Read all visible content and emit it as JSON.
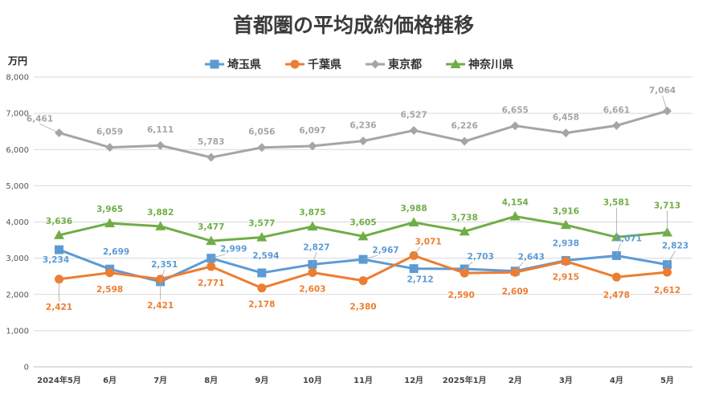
{
  "chart_data": {
    "type": "line",
    "title": "首都圏の平均成約価格推移",
    "ylabel": "万円",
    "ylim": [
      0,
      8000
    ],
    "yticks": [
      "0",
      "1,000",
      "2,000",
      "3,000",
      "4,000",
      "5,000",
      "6,000",
      "7,000",
      "8,000"
    ],
    "categories": [
      "2024年5月",
      "6月",
      "7月",
      "8月",
      "9月",
      "10月",
      "11月",
      "12月",
      "2025年1月",
      "2月",
      "3月",
      "4月",
      "5月"
    ],
    "legend_position": "top-center",
    "grid": true,
    "series": [
      {
        "name": "埼玉県",
        "color": "#5b9bd5",
        "marker": "square",
        "values": [
          3234,
          2699,
          2351,
          2999,
          2594,
          2827,
          2967,
          2712,
          2703,
          2643,
          2938,
          3071,
          2823
        ],
        "labels": [
          "3,234",
          "2,699",
          "2,351",
          "2,999",
          "2,594",
          "2,827",
          "2,967",
          "2,712",
          "2,703",
          "2,643",
          "2,938",
          "3,071",
          "2,823"
        ]
      },
      {
        "name": "千葉県",
        "color": "#ed7d31",
        "marker": "circle",
        "values": [
          2421,
          2598,
          2421,
          2771,
          2178,
          2603,
          2380,
          3071,
          2590,
          2609,
          2915,
          2478,
          2612
        ],
        "labels": [
          "2,421",
          "2,598",
          "2,421",
          "2,771",
          "2,178",
          "2,603",
          "2,380",
          "3,071",
          "2,590",
          "2,609",
          "2,915",
          "2,478",
          "2,612"
        ]
      },
      {
        "name": "東京都",
        "color": "#a5a5a5",
        "marker": "diamond",
        "values": [
          6461,
          6059,
          6111,
          5783,
          6056,
          6097,
          6236,
          6527,
          6226,
          6655,
          6458,
          6661,
          7064
        ],
        "labels": [
          "6,461",
          "6,059",
          "6,111",
          "5,783",
          "6,056",
          "6,097",
          "6,236",
          "6,527",
          "6,226",
          "6,655",
          "6,458",
          "6,661",
          "7,064"
        ]
      },
      {
        "name": "神奈川県",
        "color": "#70ad47",
        "marker": "triangle",
        "values": [
          3636,
          3965,
          3882,
          3477,
          3577,
          3875,
          3605,
          3988,
          3738,
          4154,
          3916,
          3581,
          3713
        ],
        "labels": [
          "3,636",
          "3,965",
          "3,882",
          "3,477",
          "3,577",
          "3,875",
          "3,605",
          "3,988",
          "3,738",
          "4,154",
          "3,916",
          "3,581",
          "3,713"
        ]
      }
    ]
  }
}
